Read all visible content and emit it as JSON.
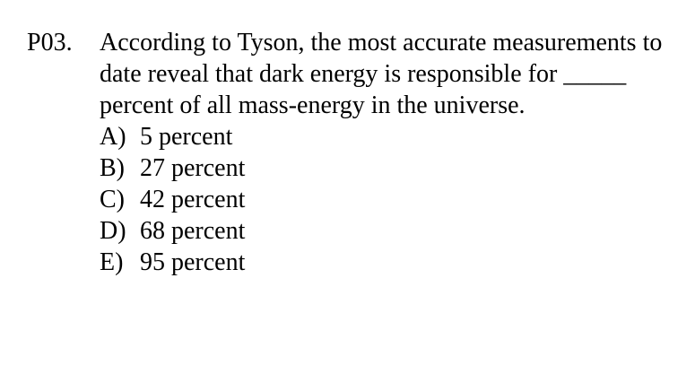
{
  "question": {
    "number": "P03.",
    "stem": "According to Tyson, the most accurate measurements to date reveal that dark energy is responsible for _____ percent of all mass-energy in the universe.",
    "choices": [
      {
        "letter": "A)",
        "text": "5 percent"
      },
      {
        "letter": "B)",
        "text": "27 percent"
      },
      {
        "letter": "C)",
        "text": "42 percent"
      },
      {
        "letter": "D)",
        "text": "68 percent"
      },
      {
        "letter": "E)",
        "text": "95 percent"
      }
    ]
  }
}
